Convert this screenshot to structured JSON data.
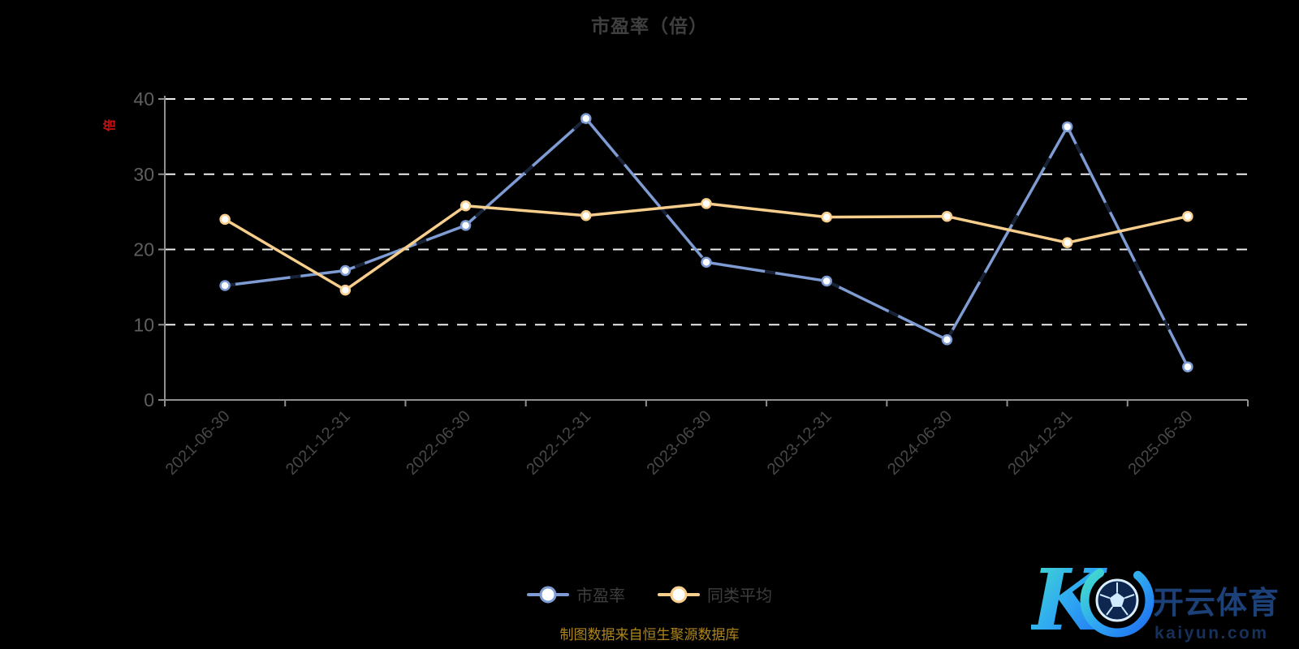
{
  "title": "市盈率（倍）",
  "y_axis": {
    "unit": "倍",
    "unit_color": "#D01212",
    "tick_labels": [
      "0",
      "10",
      "20",
      "30",
      "40"
    ]
  },
  "legend": {
    "items": [
      {
        "id": "pe-ratio",
        "label": "市盈率",
        "color": "#7E9CD3"
      },
      {
        "id": "peer-average",
        "label": "同类平均",
        "color": "#F7CE8C"
      }
    ]
  },
  "caption": "制图数据来自恒生聚源数据库",
  "watermark": {
    "mark_letter": "K",
    "brand": "开云体育",
    "domain": "kaiyun.com"
  },
  "colors": {
    "background": "#000000",
    "grid": "#EDEDED",
    "axis": "#8F8F8F",
    "title_text": "#3F3F3F",
    "y_label_text": "#5F5F5F",
    "x_label_text": "#474747",
    "pe_line": "#7E9CD3",
    "peer_line": "#F7CE8C",
    "caption_text": "#AD851A"
  },
  "chart_data": {
    "type": "line",
    "title": "市盈率（倍）",
    "xlabel": "",
    "ylabel": "倍",
    "ylim": [
      0,
      40
    ],
    "yticks": [
      0,
      10,
      20,
      30,
      40
    ],
    "grid": "horizontal white dashed",
    "legend_position": "bottom",
    "categories": [
      "2021-06-30",
      "2021-12-31",
      "2022-06-30",
      "2022-12-31",
      "2023-06-30",
      "2023-12-31",
      "2024-06-30",
      "2024-12-31",
      "2025-06-30"
    ],
    "series": [
      {
        "id": "pe-ratio",
        "name": "市盈率",
        "color": "#7E9CD3",
        "values": [
          15.2,
          17.2,
          23.2,
          37.4,
          18.3,
          15.8,
          8.0,
          36.3,
          4.4
        ]
      },
      {
        "id": "peer-average",
        "name": "同类平均",
        "color": "#F7CE8C",
        "values": [
          24.0,
          14.6,
          25.8,
          24.5,
          26.1,
          24.3,
          24.4,
          20.9,
          24.4
        ]
      }
    ]
  }
}
